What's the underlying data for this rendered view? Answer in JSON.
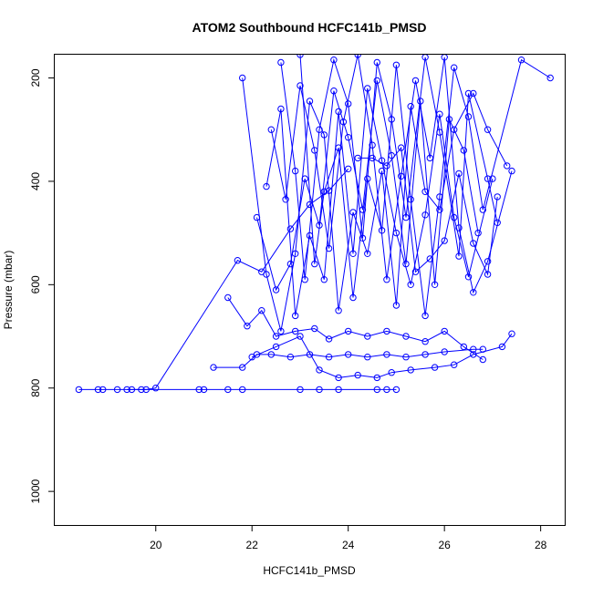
{
  "chart_data": {
    "type": "line",
    "title": "ATOM2 Southbound HCFC141b_PMSD",
    "xlabel": "HCFC141b_PMSD",
    "ylabel": "Pressure (mbar)",
    "xlim": [
      17.9,
      28.5
    ],
    "ylim": [
      1065,
      155
    ],
    "y_reversed": true,
    "x_ticks": [
      20,
      22,
      24,
      26,
      28
    ],
    "y_ticks": [
      200,
      400,
      600,
      800,
      1000
    ],
    "color": "#0000ff",
    "series": [
      {
        "values": [
          [
            18.4,
            803
          ],
          [
            18.8,
            803
          ],
          [
            18.9,
            803
          ],
          [
            19.2,
            803
          ],
          [
            19.5,
            803
          ],
          [
            19.8,
            803
          ],
          [
            20.0,
            800
          ],
          [
            21.7,
            553
          ],
          [
            22.2,
            575
          ],
          [
            22.8,
            492
          ],
          [
            23.2,
            445
          ],
          [
            23.6,
            418
          ],
          [
            24.0,
            376
          ]
        ]
      },
      {
        "values": [
          [
            19.4,
            803
          ],
          [
            19.7,
            803
          ],
          [
            20.9,
            803
          ],
          [
            21.0,
            803
          ],
          [
            21.5,
            803
          ],
          [
            21.8,
            803
          ],
          [
            23.0,
            803
          ],
          [
            23.4,
            803
          ],
          [
            23.8,
            803
          ],
          [
            24.6,
            803
          ],
          [
            24.8,
            803
          ],
          [
            25.0,
            803
          ]
        ]
      },
      {
        "values": [
          [
            21.2,
            760
          ],
          [
            21.8,
            760
          ],
          [
            22.1,
            735
          ],
          [
            22.4,
            735
          ],
          [
            22.8,
            740
          ],
          [
            23.2,
            735
          ],
          [
            23.6,
            740
          ],
          [
            24.0,
            735
          ],
          [
            24.4,
            740
          ],
          [
            24.8,
            735
          ],
          [
            25.2,
            740
          ],
          [
            25.6,
            735
          ],
          [
            26.0,
            730
          ],
          [
            26.6,
            725
          ],
          [
            26.8,
            725
          ]
        ]
      },
      {
        "values": [
          [
            21.5,
            625
          ],
          [
            21.9,
            680
          ],
          [
            22.2,
            650
          ],
          [
            22.5,
            700
          ],
          [
            22.9,
            690
          ],
          [
            23.3,
            685
          ],
          [
            23.6,
            705
          ],
          [
            24.0,
            690
          ],
          [
            24.4,
            700
          ],
          [
            24.8,
            690
          ],
          [
            25.2,
            700
          ],
          [
            25.6,
            710
          ],
          [
            26.0,
            690
          ],
          [
            26.4,
            720
          ],
          [
            26.8,
            745
          ]
        ]
      },
      {
        "values": [
          [
            22.0,
            740
          ],
          [
            22.5,
            720
          ],
          [
            23.0,
            700
          ],
          [
            23.4,
            765
          ],
          [
            23.8,
            780
          ],
          [
            24.2,
            775
          ],
          [
            24.6,
            780
          ],
          [
            24.9,
            770
          ],
          [
            25.3,
            765
          ],
          [
            25.8,
            760
          ],
          [
            26.2,
            755
          ],
          [
            26.6,
            735
          ],
          [
            27.2,
            720
          ],
          [
            27.4,
            695
          ]
        ]
      },
      {
        "values": [
          [
            21.8,
            200
          ],
          [
            22.3,
            580
          ],
          [
            22.6,
            690
          ],
          [
            22.9,
            540
          ],
          [
            23.2,
            245
          ],
          [
            23.5,
            310
          ],
          [
            23.8,
            650
          ],
          [
            24.1,
            460
          ],
          [
            24.4,
            540
          ],
          [
            24.7,
            380
          ],
          [
            25.0,
            640
          ],
          [
            25.3,
            255
          ],
          [
            25.6,
            420
          ],
          [
            25.9,
            455
          ],
          [
            26.2,
            300
          ],
          [
            26.6,
            230
          ],
          [
            26.9,
            300
          ],
          [
            27.3,
            370
          ]
        ]
      },
      {
        "values": [
          [
            22.6,
            170
          ],
          [
            22.9,
            380
          ],
          [
            23.1,
            590
          ],
          [
            23.4,
            300
          ],
          [
            23.7,
            165
          ],
          [
            24.0,
            250
          ],
          [
            24.3,
            510
          ],
          [
            24.6,
            170
          ],
          [
            24.9,
            280
          ],
          [
            25.2,
            470
          ],
          [
            25.6,
            160
          ],
          [
            25.9,
            305
          ],
          [
            26.3,
            545
          ],
          [
            26.5,
            230
          ],
          [
            26.9,
            395
          ],
          [
            27.1,
            480
          ]
        ]
      },
      {
        "values": [
          [
            22.4,
            300
          ],
          [
            22.7,
            435
          ],
          [
            23.0,
            215
          ],
          [
            23.3,
            340
          ],
          [
            23.6,
            530
          ],
          [
            23.9,
            285
          ],
          [
            24.2,
            155
          ],
          [
            24.5,
            330
          ],
          [
            24.8,
            590
          ],
          [
            25.1,
            390
          ],
          [
            25.4,
            205
          ],
          [
            25.7,
            355
          ],
          [
            26.0,
            160
          ],
          [
            26.3,
            490
          ],
          [
            26.6,
            615
          ],
          [
            26.9,
            555
          ],
          [
            27.4,
            380
          ]
        ]
      },
      {
        "values": [
          [
            22.1,
            470
          ],
          [
            22.5,
            610
          ],
          [
            22.8,
            560
          ],
          [
            23.1,
            395
          ],
          [
            23.4,
            485
          ],
          [
            23.7,
            225
          ],
          [
            24.0,
            315
          ],
          [
            24.3,
            455
          ],
          [
            24.6,
            205
          ],
          [
            24.9,
            350
          ],
          [
            25.2,
            560
          ],
          [
            25.5,
            245
          ],
          [
            25.8,
            600
          ],
          [
            26.1,
            280
          ],
          [
            26.4,
            340
          ],
          [
            26.7,
            500
          ]
        ]
      },
      {
        "values": [
          [
            22.3,
            410
          ],
          [
            22.6,
            260
          ],
          [
            22.9,
            660
          ],
          [
            23.2,
            505
          ],
          [
            23.5,
            590
          ],
          [
            23.8,
            265
          ],
          [
            24.1,
            540
          ],
          [
            24.4,
            220
          ],
          [
            24.7,
            360
          ],
          [
            25.0,
            500
          ],
          [
            25.3,
            600
          ],
          [
            25.6,
            465
          ],
          [
            25.9,
            270
          ],
          [
            26.2,
            470
          ],
          [
            26.5,
            585
          ],
          [
            27.0,
            395
          ]
        ]
      },
      {
        "values": [
          [
            23.0,
            155
          ],
          [
            23.3,
            560
          ],
          [
            23.5,
            420
          ],
          [
            23.8,
            335
          ],
          [
            24.1,
            625
          ],
          [
            24.4,
            395
          ],
          [
            24.7,
            495
          ],
          [
            25.0,
            175
          ],
          [
            25.3,
            435
          ],
          [
            25.6,
            660
          ],
          [
            25.9,
            430
          ],
          [
            26.2,
            180
          ],
          [
            26.5,
            275
          ],
          [
            26.8,
            455
          ],
          [
            27.6,
            165
          ],
          [
            28.2,
            200
          ]
        ]
      },
      {
        "values": [
          [
            24.2,
            355
          ],
          [
            24.5,
            355
          ],
          [
            24.8,
            370
          ],
          [
            25.1,
            335
          ],
          [
            25.4,
            575
          ],
          [
            25.7,
            550
          ],
          [
            26.0,
            515
          ],
          [
            26.3,
            385
          ],
          [
            26.6,
            520
          ],
          [
            26.9,
            580
          ],
          [
            27.1,
            430
          ]
        ]
      }
    ]
  }
}
